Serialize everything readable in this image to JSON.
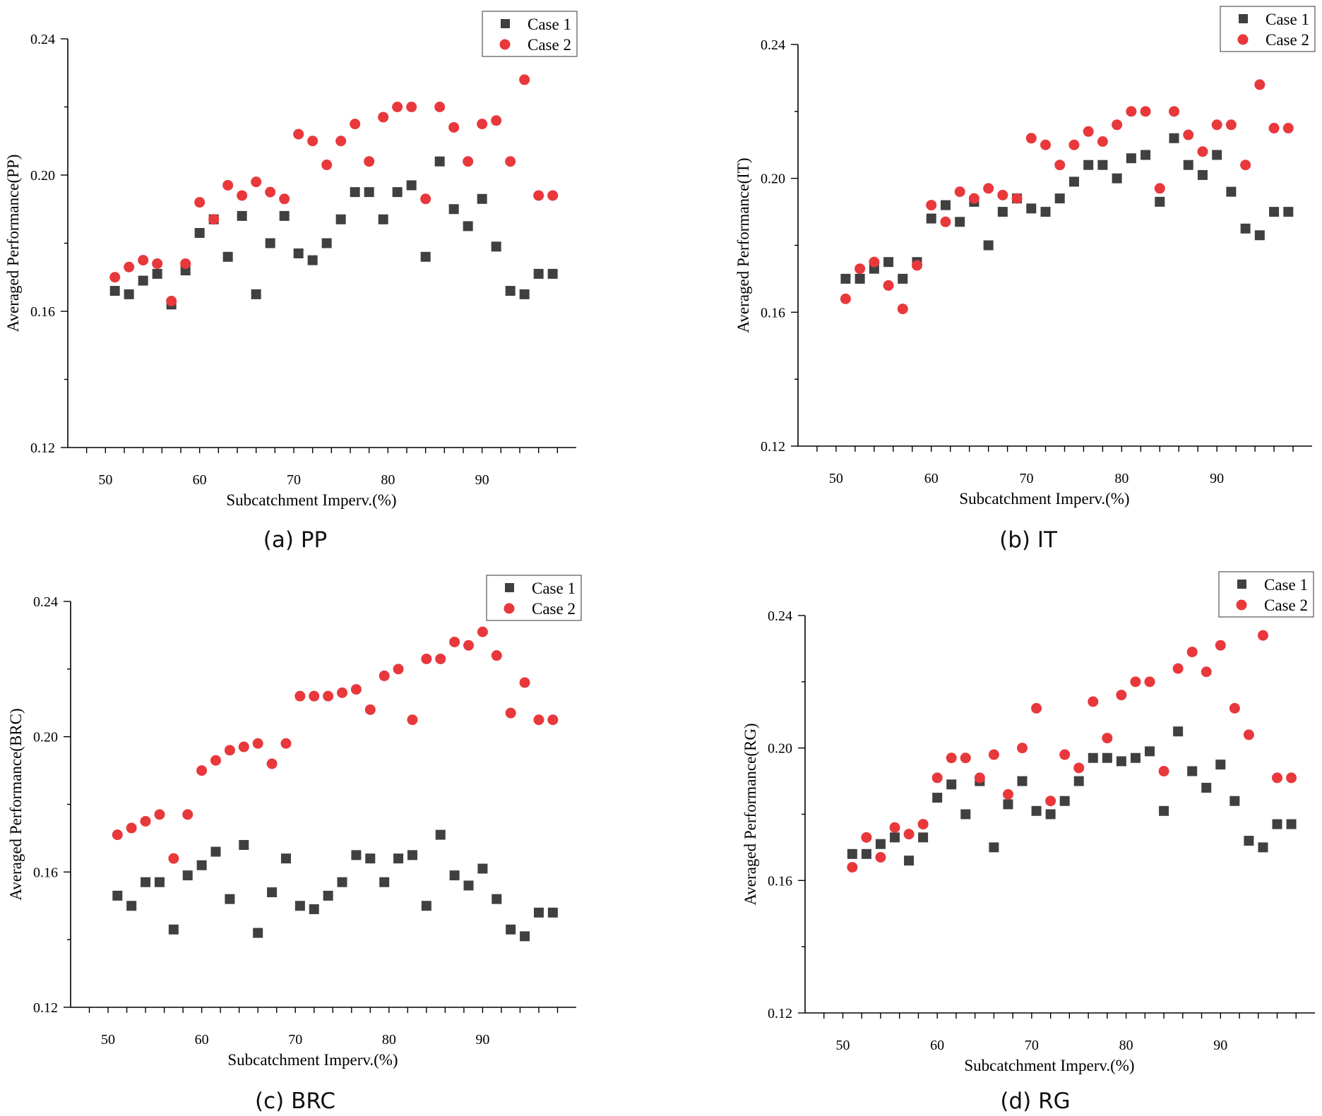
{
  "colors": {
    "case1": "#404040",
    "case2": "#e8383c"
  },
  "chart_data": [
    {
      "id": "pp",
      "type": "scatter",
      "caption": "(a) PP",
      "xlabel": "Subcatchment Imperv.(%)",
      "ylabel": "Averaged Performance(PP)",
      "xlim": [
        46,
        100
      ],
      "ylim": [
        0.12,
        0.24
      ],
      "xticks": [
        "50",
        "60",
        "70",
        "80",
        "90"
      ],
      "yticks": [
        "0.12",
        "0.16",
        "0.20",
        "0.24"
      ],
      "legend": [
        "Case 1",
        "Case 2"
      ],
      "series": [
        {
          "name": "Case 1",
          "x": [
            51,
            52.5,
            54,
            55.5,
            57,
            58.5,
            60,
            61.5,
            63,
            64.5,
            66,
            67.5,
            69,
            70.5,
            72,
            73.5,
            75,
            76.5,
            78,
            79.5,
            81,
            82.5,
            84,
            85.5,
            87,
            88.5,
            90,
            91.5,
            93,
            94.5,
            96,
            97.5
          ],
          "y": [
            0.166,
            0.165,
            0.169,
            0.171,
            0.162,
            0.172,
            0.183,
            0.187,
            0.176,
            0.188,
            0.165,
            0.18,
            0.188,
            0.177,
            0.175,
            0.18,
            0.187,
            0.195,
            0.195,
            0.187,
            0.195,
            0.197,
            0.176,
            0.204,
            0.19,
            0.185,
            0.193,
            0.179,
            0.166,
            0.165,
            0.171,
            0.171
          ]
        },
        {
          "name": "Case 2",
          "x": [
            51,
            52.5,
            54,
            55.5,
            57,
            58.5,
            60,
            61.5,
            63,
            64.5,
            66,
            67.5,
            69,
            70.5,
            72,
            73.5,
            75,
            76.5,
            78,
            79.5,
            81,
            82.5,
            84,
            85.5,
            87,
            88.5,
            90,
            91.5,
            93,
            94.5,
            96,
            97.5
          ],
          "y": [
            0.17,
            0.173,
            0.175,
            0.174,
            0.163,
            0.174,
            0.192,
            0.187,
            0.197,
            0.194,
            0.198,
            0.195,
            0.193,
            0.212,
            0.21,
            0.203,
            0.21,
            0.215,
            0.204,
            0.217,
            0.22,
            0.22,
            0.193,
            0.22,
            0.214,
            0.204,
            0.215,
            0.216,
            0.204,
            0.228,
            0.194,
            0.194
          ]
        }
      ]
    },
    {
      "id": "it",
      "type": "scatter",
      "caption": "(b) IT",
      "xlabel": "Subcatchment Imperv.(%)",
      "ylabel": "Averaged Performance(IT)",
      "xlim": [
        46,
        100
      ],
      "ylim": [
        0.12,
        0.24
      ],
      "xticks": [
        "50",
        "60",
        "70",
        "80",
        "90"
      ],
      "yticks": [
        "0.12",
        "0.16",
        "0.20",
        "0.24"
      ],
      "legend": [
        "Case 1",
        "Case 2"
      ],
      "series": [
        {
          "name": "Case 1",
          "x": [
            51,
            52.5,
            54,
            55.5,
            57,
            58.5,
            60,
            61.5,
            63,
            64.5,
            66,
            67.5,
            69,
            70.5,
            72,
            73.5,
            75,
            76.5,
            78,
            79.5,
            81,
            82.5,
            84,
            85.5,
            87,
            88.5,
            90,
            91.5,
            93,
            94.5,
            96,
            97.5
          ],
          "y": [
            0.17,
            0.17,
            0.173,
            0.175,
            0.17,
            0.175,
            0.188,
            0.192,
            0.187,
            0.193,
            0.18,
            0.19,
            0.194,
            0.191,
            0.19,
            0.194,
            0.199,
            0.204,
            0.204,
            0.2,
            0.206,
            0.207,
            0.193,
            0.212,
            0.204,
            0.201,
            0.207,
            0.196,
            0.185,
            0.183,
            0.19,
            0.19
          ]
        },
        {
          "name": "Case 2",
          "x": [
            51,
            52.5,
            54,
            55.5,
            57,
            58.5,
            60,
            61.5,
            63,
            64.5,
            66,
            67.5,
            69,
            70.5,
            72,
            73.5,
            75,
            76.5,
            78,
            79.5,
            81,
            82.5,
            84,
            85.5,
            87,
            88.5,
            90,
            91.5,
            93,
            94.5,
            96,
            97.5
          ],
          "y": [
            0.164,
            0.173,
            0.175,
            0.168,
            0.161,
            0.174,
            0.192,
            0.187,
            0.196,
            0.194,
            0.197,
            0.195,
            0.194,
            0.212,
            0.21,
            0.204,
            0.21,
            0.214,
            0.211,
            0.216,
            0.22,
            0.22,
            0.197,
            0.22,
            0.213,
            0.208,
            0.216,
            0.216,
            0.204,
            0.228,
            0.215,
            0.215
          ]
        }
      ]
    },
    {
      "id": "brc",
      "type": "scatter",
      "caption": "(c) BRC",
      "xlabel": "Subcatchment Imperv.(%)",
      "ylabel": "Averaged Performance(BRC)",
      "xlim": [
        46,
        100
      ],
      "ylim": [
        0.12,
        0.24
      ],
      "xticks": [
        "50",
        "60",
        "70",
        "80",
        "90"
      ],
      "yticks": [
        "0.12",
        "0.16",
        "0.20",
        "0.24"
      ],
      "legend": [
        "Case 1",
        "Case 2"
      ],
      "series": [
        {
          "name": "Case 1",
          "x": [
            51,
            52.5,
            54,
            55.5,
            57,
            58.5,
            60,
            61.5,
            63,
            64.5,
            66,
            67.5,
            69,
            70.5,
            72,
            73.5,
            75,
            76.5,
            78,
            79.5,
            81,
            82.5,
            84,
            85.5,
            87,
            88.5,
            90,
            91.5,
            93,
            94.5,
            96,
            97.5
          ],
          "y": [
            0.153,
            0.15,
            0.157,
            0.157,
            0.143,
            0.159,
            0.162,
            0.166,
            0.152,
            0.168,
            0.142,
            0.154,
            0.164,
            0.15,
            0.149,
            0.153,
            0.157,
            0.165,
            0.164,
            0.157,
            0.164,
            0.165,
            0.15,
            0.171,
            0.159,
            0.156,
            0.161,
            0.152,
            0.143,
            0.141,
            0.148,
            0.148
          ]
        },
        {
          "name": "Case 2",
          "x": [
            51,
            52.5,
            54,
            55.5,
            57,
            58.5,
            60,
            61.5,
            63,
            64.5,
            66,
            67.5,
            69,
            70.5,
            72,
            73.5,
            75,
            76.5,
            78,
            79.5,
            81,
            82.5,
            84,
            85.5,
            87,
            88.5,
            90,
            91.5,
            93,
            94.5,
            96,
            97.5
          ],
          "y": [
            0.171,
            0.173,
            0.175,
            0.177,
            0.164,
            0.177,
            0.19,
            0.193,
            0.196,
            0.197,
            0.198,
            0.192,
            0.198,
            0.212,
            0.212,
            0.212,
            0.213,
            0.214,
            0.208,
            0.218,
            0.22,
            0.205,
            0.223,
            0.223,
            0.228,
            0.227,
            0.231,
            0.224,
            0.207,
            0.216,
            0.205,
            0.205
          ]
        }
      ]
    },
    {
      "id": "rg",
      "type": "scatter",
      "caption": "(d) RG",
      "xlabel": "Subcatchment Imperv.(%)",
      "ylabel": "Averaged Performance(RG)",
      "xlim": [
        46,
        100
      ],
      "ylim": [
        0.12,
        0.24
      ],
      "xticks": [
        "50",
        "60",
        "70",
        "80",
        "90"
      ],
      "yticks": [
        "0.12",
        "0.16",
        "0.20",
        "0.24"
      ],
      "legend": [
        "Case 1",
        "Case 2"
      ],
      "series": [
        {
          "name": "Case 1",
          "x": [
            51,
            52.5,
            54,
            55.5,
            57,
            58.5,
            60,
            61.5,
            63,
            64.5,
            66,
            67.5,
            69,
            70.5,
            72,
            73.5,
            75,
            76.5,
            78,
            79.5,
            81,
            82.5,
            84,
            85.5,
            87,
            88.5,
            90,
            91.5,
            93,
            94.5,
            96,
            97.5
          ],
          "y": [
            0.168,
            0.168,
            0.171,
            0.173,
            0.166,
            0.173,
            0.185,
            0.189,
            0.18,
            0.19,
            0.17,
            0.183,
            0.19,
            0.181,
            0.18,
            0.184,
            0.19,
            0.197,
            0.197,
            0.196,
            0.197,
            0.199,
            0.181,
            0.205,
            0.193,
            0.188,
            0.195,
            0.184,
            0.172,
            0.17,
            0.177,
            0.177
          ]
        },
        {
          "name": "Case 2",
          "x": [
            51,
            52.5,
            54,
            55.5,
            57,
            58.5,
            60,
            61.5,
            63,
            64.5,
            66,
            67.5,
            69,
            70.5,
            72,
            73.5,
            75,
            76.5,
            78,
            79.5,
            81,
            82.5,
            84,
            85.5,
            87,
            88.5,
            90,
            91.5,
            93,
            94.5,
            96,
            97.5
          ],
          "y": [
            0.164,
            0.173,
            0.167,
            0.176,
            0.174,
            0.177,
            0.191,
            0.197,
            0.197,
            0.191,
            0.198,
            0.186,
            0.2,
            0.212,
            0.184,
            0.198,
            0.194,
            0.214,
            0.203,
            0.216,
            0.22,
            0.22,
            0.193,
            0.224,
            0.229,
            0.223,
            0.231,
            0.212,
            0.204,
            0.234,
            0.191,
            0.191
          ]
        }
      ]
    }
  ]
}
